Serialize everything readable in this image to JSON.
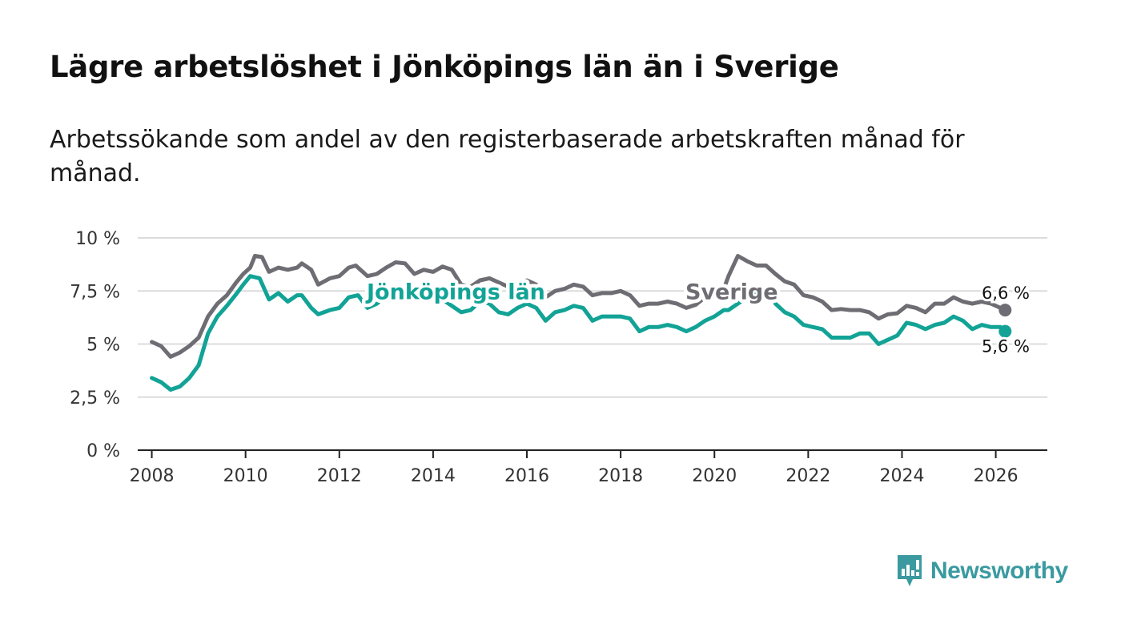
{
  "title": "Lägre arbetslöshet i Jönköpings län än i Sverige",
  "subtitle": "Arbetssökande som andel av den registerbaserade arbetskraften månad för månad.",
  "brand": {
    "name": "Newsworthy",
    "color": "#3a9aa0"
  },
  "chart_data": {
    "type": "line",
    "title": "Lägre arbetslöshet i Jönköpings län än i Sverige",
    "xlabel": "",
    "ylabel": "",
    "xlim": [
      2007.7,
      2027.1
    ],
    "ylim": [
      0,
      10
    ],
    "grid": true,
    "x_ticks": [
      2008,
      2010,
      2012,
      2014,
      2016,
      2018,
      2020,
      2022,
      2024,
      2026
    ],
    "x_tick_labels": [
      "2008",
      "2010",
      "2012",
      "2014",
      "2016",
      "2018",
      "2020",
      "2022",
      "2024",
      "2026"
    ],
    "y_ticks": [
      0,
      2.5,
      5,
      7.5,
      10
    ],
    "y_tick_labels": [
      "0 %",
      "2,5 %",
      "5 %",
      "7,5 %",
      "10 %"
    ],
    "series": [
      {
        "name": "Sverige",
        "label": "Sverige",
        "color": "#6e6d73",
        "end_label": "6,6 %",
        "points": [
          [
            2008.0,
            5.1
          ],
          [
            2008.2,
            4.9
          ],
          [
            2008.4,
            4.4
          ],
          [
            2008.6,
            4.6
          ],
          [
            2008.8,
            4.9
          ],
          [
            2009.0,
            5.3
          ],
          [
            2009.2,
            6.3
          ],
          [
            2009.4,
            6.9
          ],
          [
            2009.6,
            7.3
          ],
          [
            2009.8,
            7.9
          ],
          [
            2009.95,
            8.3
          ],
          [
            2010.1,
            8.6
          ],
          [
            2010.2,
            9.15
          ],
          [
            2010.35,
            9.1
          ],
          [
            2010.5,
            8.4
          ],
          [
            2010.7,
            8.6
          ],
          [
            2010.9,
            8.5
          ],
          [
            2011.1,
            8.6
          ],
          [
            2011.2,
            8.8
          ],
          [
            2011.4,
            8.5
          ],
          [
            2011.55,
            7.8
          ],
          [
            2011.8,
            8.1
          ],
          [
            2012.0,
            8.2
          ],
          [
            2012.2,
            8.6
          ],
          [
            2012.35,
            8.7
          ],
          [
            2012.6,
            8.2
          ],
          [
            2012.8,
            8.3
          ],
          [
            2013.0,
            8.6
          ],
          [
            2013.2,
            8.85
          ],
          [
            2013.4,
            8.8
          ],
          [
            2013.6,
            8.3
          ],
          [
            2013.8,
            8.5
          ],
          [
            2014.0,
            8.4
          ],
          [
            2014.2,
            8.65
          ],
          [
            2014.4,
            8.5
          ],
          [
            2014.6,
            7.8
          ],
          [
            2014.8,
            7.7
          ],
          [
            2015.0,
            8.0
          ],
          [
            2015.2,
            8.1
          ],
          [
            2015.4,
            7.9
          ],
          [
            2015.6,
            7.7
          ],
          [
            2015.8,
            7.6
          ],
          [
            2016.0,
            8.0
          ],
          [
            2016.2,
            7.8
          ],
          [
            2016.4,
            7.2
          ],
          [
            2016.6,
            7.5
          ],
          [
            2016.8,
            7.6
          ],
          [
            2017.0,
            7.8
          ],
          [
            2017.2,
            7.7
          ],
          [
            2017.4,
            7.3
          ],
          [
            2017.6,
            7.4
          ],
          [
            2017.8,
            7.4
          ],
          [
            2018.0,
            7.5
          ],
          [
            2018.2,
            7.3
          ],
          [
            2018.4,
            6.8
          ],
          [
            2018.6,
            6.9
          ],
          [
            2018.8,
            6.9
          ],
          [
            2019.0,
            7.0
          ],
          [
            2019.2,
            6.9
          ],
          [
            2019.4,
            6.7
          ],
          [
            2019.6,
            6.85
          ],
          [
            2019.8,
            7.2
          ],
          [
            2020.0,
            7.3
          ],
          [
            2020.2,
            7.6
          ],
          [
            2020.3,
            8.2
          ],
          [
            2020.5,
            9.15
          ],
          [
            2020.7,
            8.9
          ],
          [
            2020.9,
            8.7
          ],
          [
            2021.1,
            8.7
          ],
          [
            2021.3,
            8.3
          ],
          [
            2021.5,
            7.95
          ],
          [
            2021.7,
            7.8
          ],
          [
            2021.9,
            7.3
          ],
          [
            2022.1,
            7.2
          ],
          [
            2022.3,
            7.0
          ],
          [
            2022.5,
            6.6
          ],
          [
            2022.7,
            6.65
          ],
          [
            2022.9,
            6.6
          ],
          [
            2023.1,
            6.6
          ],
          [
            2023.3,
            6.5
          ],
          [
            2023.5,
            6.2
          ],
          [
            2023.7,
            6.4
          ],
          [
            2023.9,
            6.45
          ],
          [
            2024.1,
            6.8
          ],
          [
            2024.3,
            6.7
          ],
          [
            2024.5,
            6.5
          ],
          [
            2024.7,
            6.9
          ],
          [
            2024.9,
            6.9
          ],
          [
            2025.1,
            7.2
          ],
          [
            2025.3,
            7.0
          ],
          [
            2025.5,
            6.9
          ],
          [
            2025.7,
            7.0
          ],
          [
            2025.9,
            6.9
          ],
          [
            2026.1,
            6.7
          ],
          [
            2026.2,
            6.6
          ]
        ]
      },
      {
        "name": "Jönköpings län",
        "label": "Jönköpings län",
        "color": "#12a396",
        "end_label": "5,6 %",
        "points": [
          [
            2008.0,
            3.4
          ],
          [
            2008.2,
            3.2
          ],
          [
            2008.4,
            2.85
          ],
          [
            2008.6,
            3.0
          ],
          [
            2008.8,
            3.4
          ],
          [
            2009.0,
            4.0
          ],
          [
            2009.2,
            5.5
          ],
          [
            2009.4,
            6.3
          ],
          [
            2009.6,
            6.8
          ],
          [
            2009.8,
            7.35
          ],
          [
            2009.95,
            7.8
          ],
          [
            2010.1,
            8.2
          ],
          [
            2010.3,
            8.1
          ],
          [
            2010.5,
            7.1
          ],
          [
            2010.7,
            7.4
          ],
          [
            2010.9,
            7.0
          ],
          [
            2011.1,
            7.3
          ],
          [
            2011.2,
            7.3
          ],
          [
            2011.4,
            6.7
          ],
          [
            2011.55,
            6.4
          ],
          [
            2011.8,
            6.6
          ],
          [
            2012.0,
            6.7
          ],
          [
            2012.2,
            7.2
          ],
          [
            2012.4,
            7.3
          ],
          [
            2012.6,
            6.7
          ],
          [
            2012.8,
            6.9
          ],
          [
            2013.0,
            7.3
          ],
          [
            2013.2,
            7.5
          ],
          [
            2013.4,
            7.4
          ],
          [
            2013.6,
            7.1
          ],
          [
            2013.8,
            7.2
          ],
          [
            2014.0,
            7.1
          ],
          [
            2014.2,
            7.1
          ],
          [
            2014.4,
            6.8
          ],
          [
            2014.6,
            6.5
          ],
          [
            2014.8,
            6.6
          ],
          [
            2015.0,
            7.0
          ],
          [
            2015.2,
            6.9
          ],
          [
            2015.4,
            6.5
          ],
          [
            2015.6,
            6.4
          ],
          [
            2015.8,
            6.7
          ],
          [
            2016.0,
            6.9
          ],
          [
            2016.2,
            6.7
          ],
          [
            2016.4,
            6.1
          ],
          [
            2016.6,
            6.5
          ],
          [
            2016.8,
            6.6
          ],
          [
            2017.0,
            6.8
          ],
          [
            2017.2,
            6.7
          ],
          [
            2017.4,
            6.1
          ],
          [
            2017.6,
            6.3
          ],
          [
            2017.8,
            6.3
          ],
          [
            2018.0,
            6.3
          ],
          [
            2018.2,
            6.2
          ],
          [
            2018.4,
            5.6
          ],
          [
            2018.6,
            5.8
          ],
          [
            2018.8,
            5.8
          ],
          [
            2019.0,
            5.9
          ],
          [
            2019.2,
            5.8
          ],
          [
            2019.4,
            5.6
          ],
          [
            2019.6,
            5.8
          ],
          [
            2019.8,
            6.1
          ],
          [
            2020.0,
            6.3
          ],
          [
            2020.2,
            6.6
          ],
          [
            2020.3,
            6.6
          ],
          [
            2020.5,
            6.9
          ],
          [
            2020.8,
            7.4
          ],
          [
            2021.0,
            7.4
          ],
          [
            2021.2,
            7.5
          ],
          [
            2021.3,
            6.9
          ],
          [
            2021.5,
            6.5
          ],
          [
            2021.7,
            6.3
          ],
          [
            2021.9,
            5.9
          ],
          [
            2022.1,
            5.8
          ],
          [
            2022.3,
            5.7
          ],
          [
            2022.5,
            5.3
          ],
          [
            2022.7,
            5.3
          ],
          [
            2022.9,
            5.3
          ],
          [
            2023.1,
            5.5
          ],
          [
            2023.3,
            5.5
          ],
          [
            2023.5,
            5.0
          ],
          [
            2023.7,
            5.2
          ],
          [
            2023.9,
            5.4
          ],
          [
            2024.1,
            6.0
          ],
          [
            2024.3,
            5.9
          ],
          [
            2024.5,
            5.7
          ],
          [
            2024.7,
            5.9
          ],
          [
            2024.9,
            6.0
          ],
          [
            2025.1,
            6.3
          ],
          [
            2025.3,
            6.1
          ],
          [
            2025.5,
            5.7
          ],
          [
            2025.7,
            5.9
          ],
          [
            2025.9,
            5.8
          ],
          [
            2026.1,
            5.8
          ],
          [
            2026.2,
            5.6
          ]
        ]
      }
    ]
  }
}
